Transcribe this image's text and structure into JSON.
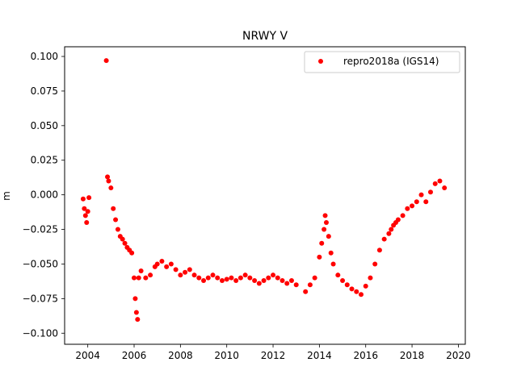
{
  "chart_data": {
    "type": "scatter",
    "title": "NRWY V",
    "xlabel": "",
    "ylabel": "m",
    "xlim": [
      2003.0,
      2020.3
    ],
    "ylim": [
      -0.108,
      0.107
    ],
    "xticks": [
      2004,
      2006,
      2008,
      2010,
      2012,
      2014,
      2016,
      2018,
      2020
    ],
    "yticks": [
      -0.1,
      -0.075,
      -0.05,
      -0.025,
      0.0,
      0.025,
      0.05,
      0.075,
      0.1
    ],
    "xtick_labels": [
      "2004",
      "2006",
      "2008",
      "2010",
      "2012",
      "2014",
      "2016",
      "2018",
      "2020"
    ],
    "ytick_labels": [
      "−0.100",
      "−0.075",
      "−0.050",
      "−0.025",
      "0.000",
      "0.025",
      "0.050",
      "0.075",
      "0.100"
    ],
    "legend_position": "top-right",
    "grid": false,
    "series": [
      {
        "name": "repro2018a (IGS14)",
        "color": "#ff0000",
        "marker": "circle",
        "x": [
          2003.8,
          2003.85,
          2003.9,
          2003.95,
          2004.0,
          2004.05,
          2004.8,
          2004.85,
          2004.9,
          2005.0,
          2005.1,
          2005.2,
          2005.3,
          2005.4,
          2005.5,
          2005.6,
          2005.7,
          2005.8,
          2005.9,
          2006.0,
          2006.05,
          2006.1,
          2006.15,
          2006.2,
          2006.3,
          2006.5,
          2006.7,
          2006.9,
          2007.0,
          2007.2,
          2007.4,
          2007.6,
          2007.8,
          2008.0,
          2008.2,
          2008.4,
          2008.6,
          2008.8,
          2009.0,
          2009.2,
          2009.4,
          2009.6,
          2009.8,
          2010.0,
          2010.2,
          2010.4,
          2010.6,
          2010.8,
          2011.0,
          2011.2,
          2011.4,
          2011.6,
          2011.8,
          2012.0,
          2012.2,
          2012.4,
          2012.6,
          2012.8,
          2013.0,
          2013.4,
          2013.6,
          2013.8,
          2014.0,
          2014.1,
          2014.2,
          2014.25,
          2014.3,
          2014.4,
          2014.5,
          2014.6,
          2014.8,
          2015.0,
          2015.2,
          2015.4,
          2015.6,
          2015.8,
          2016.0,
          2016.2,
          2016.4,
          2016.6,
          2016.8,
          2017.0,
          2017.1,
          2017.2,
          2017.3,
          2017.4,
          2017.6,
          2017.8,
          2018.0,
          2018.2,
          2018.4,
          2018.6,
          2018.8,
          2019.0,
          2019.2,
          2019.4
        ],
        "y": [
          -0.003,
          -0.01,
          -0.015,
          -0.02,
          -0.012,
          -0.002,
          0.097,
          0.013,
          0.01,
          0.005,
          -0.01,
          -0.018,
          -0.025,
          -0.03,
          -0.032,
          -0.035,
          -0.038,
          -0.04,
          -0.042,
          -0.06,
          -0.075,
          -0.085,
          -0.09,
          -0.06,
          -0.055,
          -0.06,
          -0.058,
          -0.052,
          -0.05,
          -0.048,
          -0.052,
          -0.05,
          -0.054,
          -0.058,
          -0.056,
          -0.054,
          -0.058,
          -0.06,
          -0.062,
          -0.06,
          -0.058,
          -0.06,
          -0.062,
          -0.061,
          -0.06,
          -0.062,
          -0.06,
          -0.058,
          -0.06,
          -0.062,
          -0.064,
          -0.062,
          -0.06,
          -0.058,
          -0.06,
          -0.062,
          -0.064,
          -0.062,
          -0.065,
          -0.07,
          -0.065,
          -0.06,
          -0.045,
          -0.035,
          -0.025,
          -0.015,
          -0.02,
          -0.03,
          -0.042,
          -0.05,
          -0.058,
          -0.062,
          -0.065,
          -0.068,
          -0.07,
          -0.072,
          -0.066,
          -0.06,
          -0.05,
          -0.04,
          -0.032,
          -0.028,
          -0.025,
          -0.022,
          -0.02,
          -0.018,
          -0.015,
          -0.01,
          -0.008,
          -0.005,
          0.0,
          -0.005,
          0.002,
          0.008,
          0.01,
          0.005
        ]
      }
    ]
  }
}
